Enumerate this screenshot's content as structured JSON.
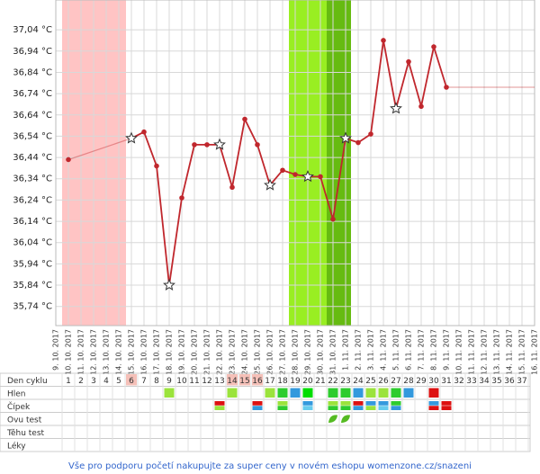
{
  "chart_data": {
    "type": "line",
    "categories": [
      "9. 10. 2017",
      "10. 10. 2017",
      "11. 10. 2017",
      "12. 10. 2017",
      "13. 10. 2017",
      "14. 10. 2017",
      "15. 10. 2017",
      "16. 10. 2017",
      "17. 10. 2017",
      "18. 10. 2017",
      "19. 10. 2017",
      "20. 10. 2017",
      "21. 10. 2017",
      "22. 10. 2017",
      "23. 10. 2017",
      "24. 10. 2017",
      "25. 10. 2017",
      "26. 10. 2017",
      "27. 10. 2017",
      "28. 10. 2017",
      "29. 10. 2017",
      "30. 10. 2017",
      "31. 10. 2017",
      "1. 11. 2017",
      "2. 11. 2017",
      "3. 11. 2017",
      "4. 11. 2017",
      "5. 11. 2017",
      "6. 11. 2017",
      "7. 11. 2017",
      "8. 11. 2017",
      "9. 11. 2017",
      "10. 11. 2017",
      "11. 11. 2017",
      "12. 11. 2017",
      "13. 11. 2017",
      "14. 11. 2017",
      "15. 11. 2017",
      "16. 11. 2017"
    ],
    "series": [
      {
        "color": "#c0272d",
        "values": [
          null,
          36.43,
          null,
          null,
          null,
          null,
          36.53,
          36.56,
          36.4,
          35.84,
          36.25,
          36.5,
          36.5,
          36.5,
          36.3,
          36.62,
          36.5,
          36.31,
          36.38,
          36.36,
          36.35,
          36.35,
          36.15,
          36.53,
          36.51,
          36.55,
          36.99,
          36.67,
          36.89,
          36.68,
          36.96,
          36.77,
          null,
          null,
          null,
          null,
          null,
          null,
          null
        ],
        "markers": [
          null,
          "dot",
          null,
          null,
          null,
          null,
          "star",
          "dot",
          "dot",
          "star",
          "dot",
          "dot",
          "dot",
          "star",
          "dot",
          "dot",
          "dot",
          "star",
          "dot",
          "dot",
          "star",
          "dot",
          "dot",
          "star",
          "dot",
          "dot",
          "dot",
          "star",
          "dot",
          "dot",
          "dot",
          "dot",
          null,
          null,
          null,
          null,
          null,
          null,
          null
        ]
      }
    ],
    "ylim": [
      35.65,
      37.18
    ],
    "yticks": [
      {
        "value": 35.74,
        "label": "35,74 °C"
      },
      {
        "value": 35.84,
        "label": "35,84 °C"
      },
      {
        "value": 35.94,
        "label": "35,94 °C"
      },
      {
        "value": 36.04,
        "label": "36,04 °C"
      },
      {
        "value": 36.14,
        "label": "36,14 °C"
      },
      {
        "value": 36.24,
        "label": "36,24 °C"
      },
      {
        "value": 36.34,
        "label": "36,34 °C"
      },
      {
        "value": 36.44,
        "label": "36,44 °C"
      },
      {
        "value": 36.54,
        "label": "36,54 °C"
      },
      {
        "value": 36.64,
        "label": "36,64 °C"
      },
      {
        "value": 36.74,
        "label": "36,74 °C"
      },
      {
        "value": 36.84,
        "label": "36,84 °C"
      },
      {
        "value": 36.94,
        "label": "36,94 °C"
      },
      {
        "value": 37.04,
        "label": "37,04 °C"
      }
    ],
    "grid": true
  },
  "table": {
    "row_labels": [
      "Den cyklu",
      "Hlen",
      "Čípek",
      "Ovu test",
      "Těhu test",
      "Léky"
    ],
    "cycle_days": [
      1,
      2,
      3,
      4,
      5,
      6,
      7,
      8,
      9,
      10,
      11,
      12,
      13,
      14,
      15,
      16,
      17,
      18,
      19,
      20,
      21,
      22,
      23,
      24,
      25,
      26,
      27,
      28,
      29,
      30,
      31,
      32,
      33,
      34,
      35,
      36,
      37
    ],
    "cycle_day_colors": [
      null,
      null,
      null,
      null,
      null,
      "#f5c0b8",
      null,
      null,
      null,
      null,
      null,
      null,
      null,
      "#f5c0b8",
      "#f5c0b8",
      "#f5c0b8",
      null,
      null,
      null,
      null,
      null,
      null,
      null,
      null,
      null,
      null,
      null,
      null,
      null,
      null,
      null,
      null,
      null,
      null,
      null,
      null,
      null
    ],
    "hlen": [
      null,
      null,
      null,
      null,
      null,
      null,
      null,
      null,
      "#9be33c",
      null,
      null,
      null,
      null,
      "#9be33c",
      null,
      null,
      "#9be33c",
      "#2ecc2e",
      "#3399dd",
      "#00dd00",
      null,
      "#2ecc2e",
      "#2ecc2e",
      "#3399dd",
      "#9be33c",
      "#9be33c",
      "#2ecc2e",
      "#3399dd",
      null,
      "#dd1111",
      null,
      null,
      null,
      null,
      null,
      null,
      null
    ],
    "cipek": [
      null,
      null,
      null,
      null,
      null,
      null,
      null,
      null,
      null,
      null,
      null,
      null,
      [
        "#dd1111",
        "#9be33c"
      ],
      null,
      null,
      [
        "#dd1111",
        "#3399dd"
      ],
      null,
      [
        "#9be33c",
        "#2ecc2e"
      ],
      null,
      [
        "#3399dd",
        "#66ccee"
      ],
      null,
      [
        "#9be33c",
        "#2ecc2e"
      ],
      [
        "#9be33c",
        "#2ecc2e"
      ],
      [
        "#dd1111",
        "#3399dd"
      ],
      [
        "#3399dd",
        "#9be33c"
      ],
      [
        "#3399dd",
        "#66ccee"
      ],
      [
        "#2ecc2e",
        "#3399dd"
      ],
      null,
      null,
      [
        "#3399dd",
        "#dd1111"
      ],
      [
        "#dd1111",
        "#dd1111"
      ],
      null,
      null,
      null,
      null,
      null,
      null
    ],
    "ovu_test": [
      null,
      null,
      null,
      null,
      null,
      null,
      null,
      null,
      null,
      null,
      null,
      null,
      null,
      null,
      null,
      null,
      null,
      null,
      null,
      null,
      null,
      "#55bb22",
      "#55bb22",
      null,
      null,
      null,
      null,
      null,
      null,
      null,
      null,
      null,
      null,
      null,
      null,
      null,
      null
    ]
  },
  "footer": "Vše pro podporu početí nakupujte za super ceny v novém eshopu womenzone.cz/snazeni"
}
